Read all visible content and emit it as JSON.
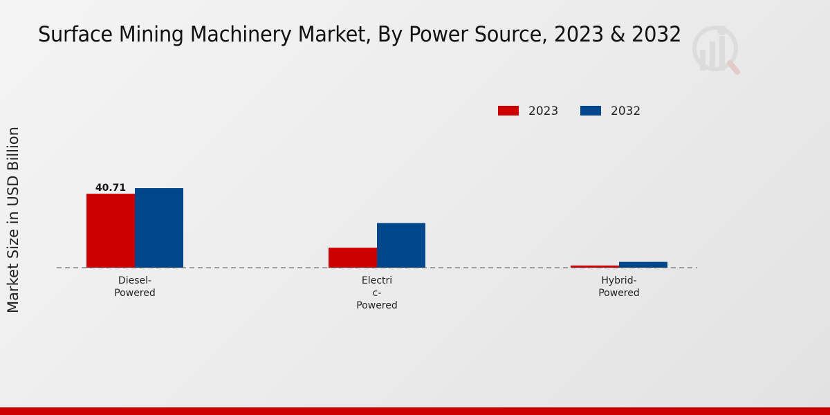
{
  "chart_data": {
    "type": "bar",
    "title": "Surface Mining Machinery Market, By Power Source, 2023 & 2032",
    "ylabel": "Market Size in USD Billion",
    "xlabel": "",
    "categories": [
      [
        "Diesel-",
        "Powered"
      ],
      [
        "Electri",
        "c-",
        "Powered"
      ],
      [
        "Hybrid-",
        "Powered"
      ]
    ],
    "series": [
      {
        "name": "2023",
        "color": "#cc0000",
        "values": [
          40.71,
          11.0,
          1.2
        ],
        "labels": [
          "40.71",
          "",
          ""
        ]
      },
      {
        "name": "2032",
        "color": "#00468b",
        "values": [
          43.8,
          24.6,
          3.2
        ],
        "labels": [
          "",
          "",
          ""
        ]
      }
    ],
    "ylim": [
      0,
      80
    ],
    "grid": false,
    "legend_position": "top-right",
    "baseline_style": "dashed"
  },
  "watermark": {
    "icon": "chart-logo-icon"
  }
}
